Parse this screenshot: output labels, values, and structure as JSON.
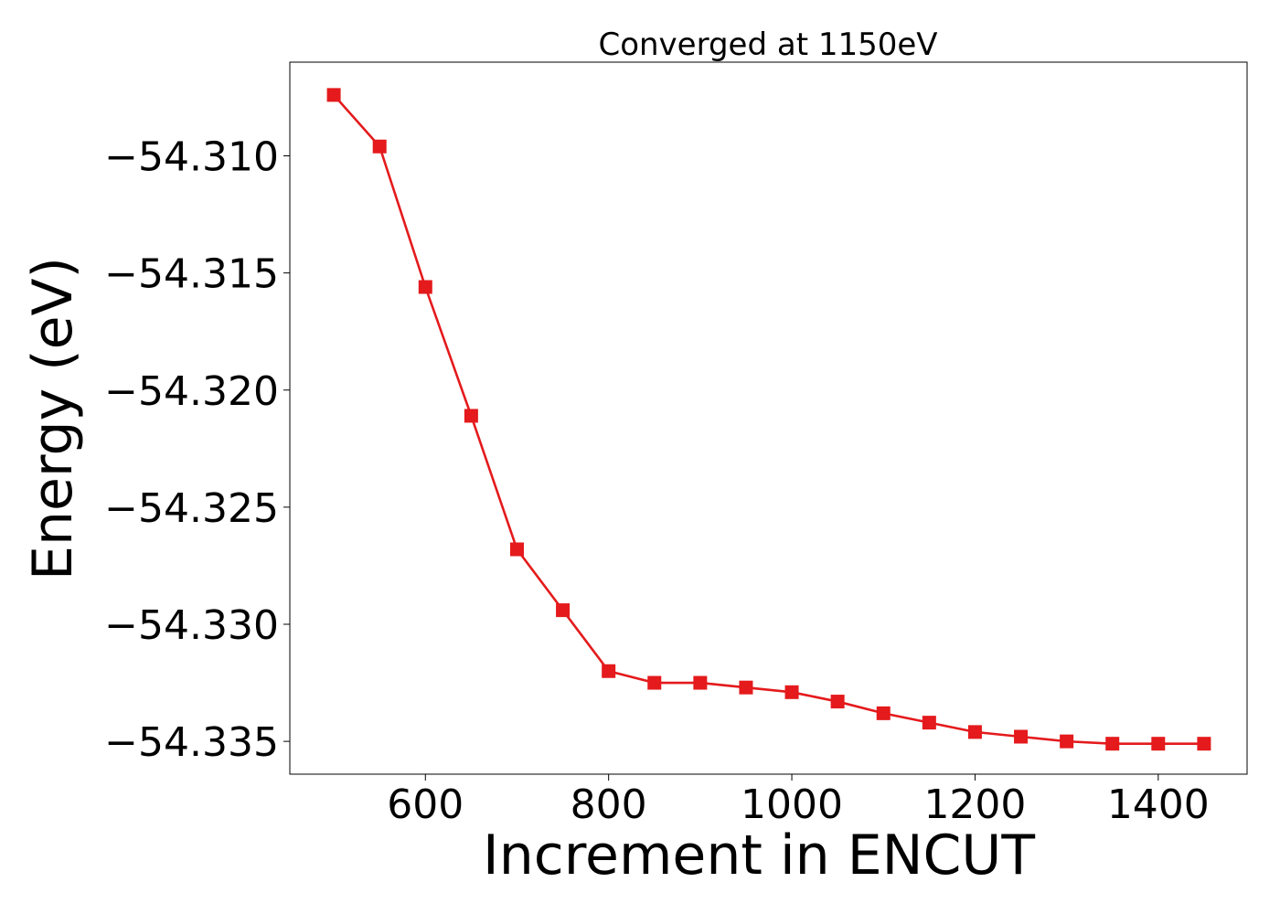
{
  "chart_data": {
    "type": "line",
    "title": "Converged at 1150eV",
    "xlabel": "Increment in ENCUT",
    "ylabel": "Energy (eV)",
    "xlim": [
      452,
      1497
    ],
    "ylim": [
      -54.3364,
      -54.306
    ],
    "xticks": [
      600,
      800,
      1000,
      1200,
      1400
    ],
    "xtick_labels": [
      "600",
      "800",
      "1000",
      "1200",
      "1400"
    ],
    "yticks": [
      -54.31,
      -54.315,
      -54.32,
      -54.325,
      -54.33,
      -54.335
    ],
    "ytick_labels": [
      "−54.310",
      "−54.315",
      "−54.320",
      "−54.325",
      "−54.330",
      "−54.335"
    ],
    "grid": false,
    "series": [
      {
        "color": "#e41a1c",
        "marker": "square",
        "x": [
          500,
          550,
          600,
          650,
          700,
          750,
          800,
          850,
          900,
          950,
          1000,
          1050,
          1100,
          1150,
          1200,
          1250,
          1300,
          1350,
          1400,
          1450
        ],
        "y": [
          -54.3074,
          -54.3096,
          -54.3156,
          -54.3211,
          -54.3268,
          -54.3294,
          -54.332,
          -54.3325,
          -54.3325,
          -54.3327,
          -54.3329,
          -54.3333,
          -54.3338,
          -54.3342,
          -54.3346,
          -54.3348,
          -54.335,
          -54.3351,
          -54.3351,
          -54.3351
        ]
      }
    ]
  }
}
